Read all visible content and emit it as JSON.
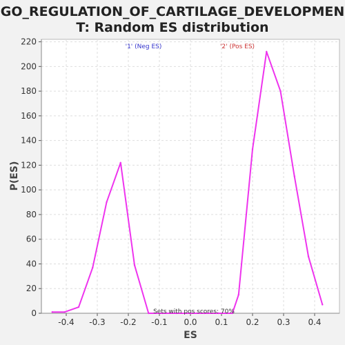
{
  "chart_data": {
    "type": "line",
    "title_line1": "GO_REGULATION_OF_CARTILAGE_DEVELOPMEN",
    "title_line2": "T: Random ES distribution",
    "xlabel": "ES",
    "ylabel": "P(ES)",
    "xlim": [
      -0.48,
      0.48
    ],
    "ylim": [
      0,
      222
    ],
    "x_ticks": [
      -0.4,
      -0.3,
      -0.2,
      -0.1,
      0.0,
      0.1,
      0.2,
      0.3,
      0.4
    ],
    "x_tick_labels": [
      "-0.4",
      "-0.3",
      "-0.2",
      "-0.1",
      "0.0",
      "0.1",
      "0.2",
      "0.3",
      "0.4"
    ],
    "y_ticks": [
      0,
      20,
      40,
      60,
      80,
      100,
      120,
      140,
      160,
      180,
      200,
      220
    ],
    "y_tick_labels": [
      "0",
      "20",
      "40",
      "60",
      "80",
      "100",
      "120",
      "140",
      "160",
      "180",
      "200",
      "220"
    ],
    "grid": true,
    "series": [
      {
        "color": "#ee33ee",
        "x": [
          -0.445,
          -0.405,
          -0.36,
          -0.315,
          -0.27,
          -0.225,
          -0.18,
          -0.135,
          -0.09,
          -0.045,
          0.0,
          0.045,
          0.09,
          0.135,
          0.155,
          0.2,
          0.245,
          0.29,
          0.335,
          0.38,
          0.425
        ],
        "y": [
          1,
          1,
          5,
          37,
          90,
          122,
          39,
          0,
          0,
          0,
          0,
          0,
          0,
          0,
          15,
          133,
          212,
          180,
          111,
          46,
          7
        ]
      }
    ],
    "annotations": {
      "neg_label": "'1' (Neg ES)",
      "pos_label": "'2' (Pos ES)",
      "neg_color": "#3333cc",
      "pos_color": "#cc3333",
      "sets_text": "Sets with pos scores: 70%"
    }
  }
}
